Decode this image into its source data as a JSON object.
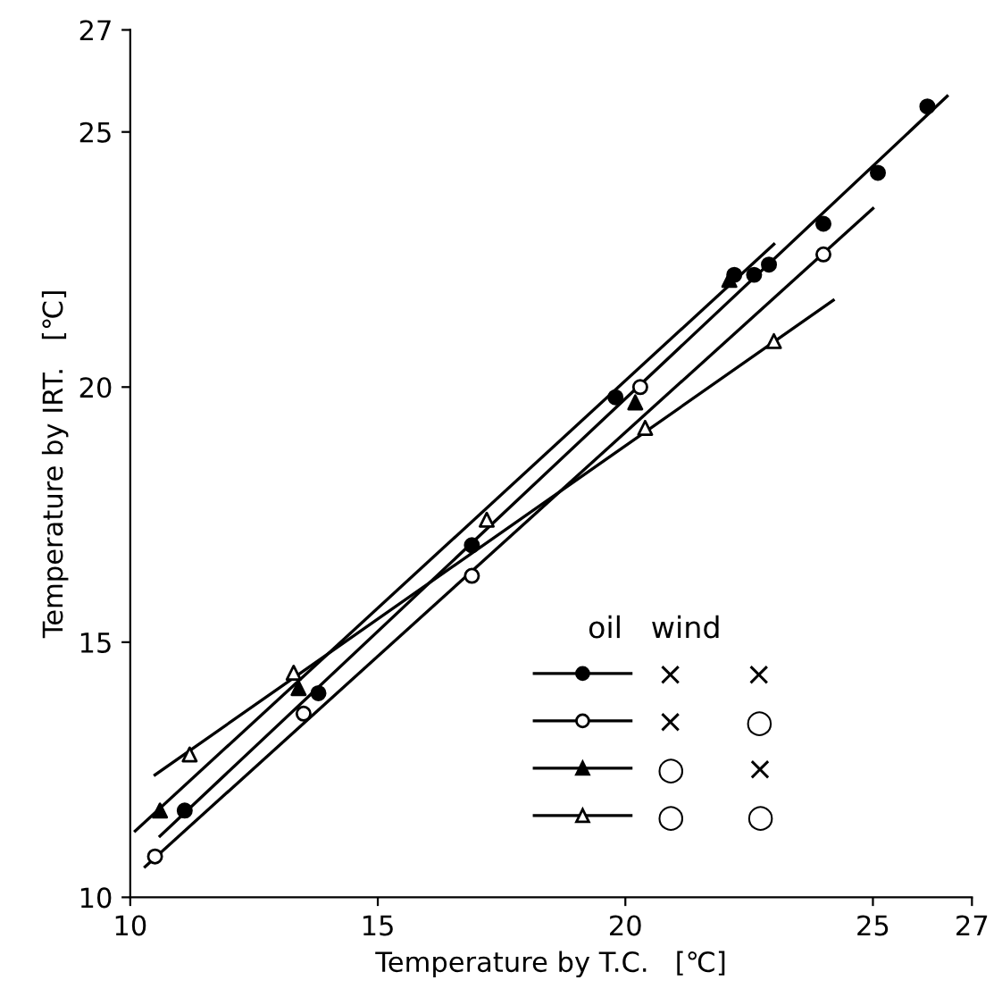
{
  "chart_data": {
    "type": "scatter",
    "xlabel": "Temperature by T.C.   [℃]",
    "ylabel": "Temperature by IRT.   [℃]",
    "legend_title": "oil   wind",
    "xlim": [
      10,
      27
    ],
    "ylim": [
      10,
      27
    ],
    "xticks": [
      10,
      15,
      20,
      25,
      27
    ],
    "yticks": [
      10,
      15,
      20,
      25,
      27
    ],
    "grid": false,
    "legend": "bottom right",
    "series": [
      {
        "name": "×      ×",
        "marker": "circle",
        "color": "#000000",
        "x": [
          11.1,
          13.8,
          16.9,
          19.8,
          22.2,
          22.6,
          22.9,
          24.0,
          25.1,
          26.1
        ],
        "values": [
          11.7,
          14.0,
          16.9,
          19.8,
          22.2,
          22.2,
          22.4,
          23.2,
          24.2,
          25.5
        ]
      },
      {
        "name": "×      ○",
        "marker": "circle",
        "color": "#ffffff",
        "x": [
          10.5,
          13.5,
          16.9,
          20.3,
          24.0
        ],
        "values": [
          10.8,
          13.6,
          16.3,
          20.0,
          22.6
        ]
      },
      {
        "name": "○      ×",
        "marker": "triangle",
        "color": "#000000",
        "x": [
          10.6,
          13.4,
          20.2,
          22.1
        ],
        "values": [
          11.7,
          14.1,
          19.7,
          22.1
        ]
      },
      {
        "name": "○      ○",
        "marker": "triangle",
        "color": "#ffffff",
        "x": [
          11.2,
          13.3,
          17.2,
          20.4,
          23.0
        ],
        "values": [
          12.8,
          14.4,
          17.4,
          19.2,
          20.9
        ]
      },
      {
        "type": "line",
        "color": "#000000",
        "line_style": "solid",
        "x": [
          10.6,
          26.5
        ],
        "values": [
          11.2,
          25.7
        ]
      },
      {
        "type": "line",
        "color": "#000000",
        "line_style": "solid",
        "x": [
          10.3,
          25.0
        ],
        "values": [
          10.6,
          23.5
        ]
      },
      {
        "type": "line",
        "color": "#000000",
        "line_style": "solid",
        "x": [
          10.1,
          23.0
        ],
        "values": [
          11.3,
          22.8
        ]
      },
      {
        "type": "line",
        "color": "#000000",
        "line_style": "solid",
        "x": [
          10.5,
          24.2
        ],
        "values": [
          12.4,
          21.7
        ]
      }
    ]
  }
}
